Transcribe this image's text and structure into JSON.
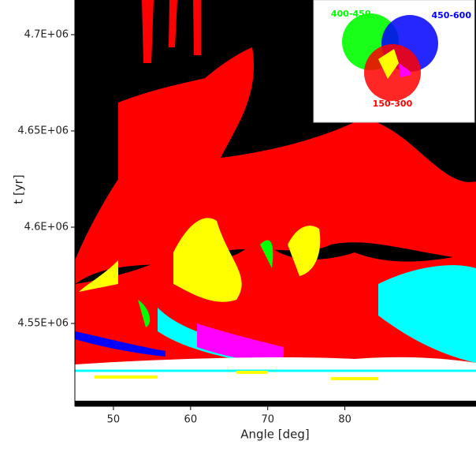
{
  "chart_data": {
    "type": "image",
    "xlabel": "Angle [deg]",
    "ylabel": "t [yr]",
    "xlim": [
      45,
      97
    ],
    "ylim": [
      4507000,
      4718000
    ],
    "xticks": [
      50,
      60,
      70,
      80
    ],
    "yticks": [
      {
        "value": 4550000,
        "label": "4.55E+06"
      },
      {
        "value": 4600000,
        "label": "4.6E+06"
      },
      {
        "value": 4650000,
        "label": "4.65E+06"
      },
      {
        "value": 4700000,
        "label": "4.7E+06"
      }
    ],
    "series": [
      {
        "name": "400-450",
        "color": "#00ff00"
      },
      {
        "name": "450-600",
        "color": "#0000ff"
      },
      {
        "name": "150-300",
        "color": "#ff0000"
      }
    ]
  }
}
